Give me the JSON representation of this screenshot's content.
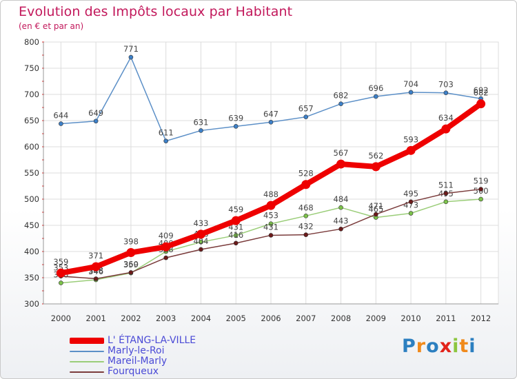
{
  "chart_data": {
    "type": "line",
    "title": "Evolution des Impôts locaux par Habitant",
    "subtitle": "(en € et par an)",
    "xlabel": "",
    "ylabel": "",
    "ylim": [
      300,
      800
    ],
    "y_ticks": [
      300,
      350,
      400,
      450,
      500,
      550,
      600,
      650,
      700,
      750,
      800
    ],
    "x": [
      "2000",
      "2001",
      "2002",
      "2003",
      "2004",
      "2005",
      "2006",
      "2007",
      "2008",
      "2009",
      "2010",
      "2011",
      "2012"
    ],
    "grid": true,
    "legend_position": "bottom-left",
    "series": [
      {
        "name": "Marly-le-Roi",
        "color": "#5b8fc7",
        "marker_color": "#3d80c8",
        "values": [
          644,
          649,
          771,
          611,
          631,
          639,
          647,
          657,
          682,
          696,
          704,
          703,
          692
        ],
        "labels": [
          "644",
          "649",
          "771",
          "611",
          "631",
          "639",
          "647",
          "657",
          "682",
          "696",
          "704",
          "703",
          "692"
        ]
      },
      {
        "name": "Mareil-Marly",
        "color": "#9acd78",
        "marker_color": "#7cc24a",
        "values": [
          340,
          346,
          359,
          400,
          418,
          431,
          453,
          468,
          484,
          465,
          473,
          495,
          500
        ],
        "labels": [
          "340",
          "346",
          "359",
          "400",
          "418",
          "431",
          "453",
          "468",
          "484",
          "465",
          "473",
          "495",
          "500"
        ]
      },
      {
        "name": "Fourqueux",
        "color": "#7a3b3b",
        "marker_color": "#6b1a1a",
        "values": [
          353,
          348,
          360,
          388,
          404,
          416,
          431,
          432,
          443,
          471,
          495,
          511,
          519
        ],
        "labels": [
          "353",
          "348",
          "360",
          "388",
          "404",
          "416",
          "431",
          "432",
          "443",
          "471",
          "495",
          "511",
          "519"
        ]
      },
      {
        "name": "L' ÉTANG-LA-VILLE",
        "color": "#ee0000",
        "marker_color": "#ee0000",
        "values": [
          359,
          371,
          398,
          409,
          433,
          459,
          488,
          528,
          567,
          562,
          593,
          634,
          682
        ],
        "labels": [
          "359",
          "371",
          "398",
          "409",
          "433",
          "459",
          "488",
          "528",
          "567",
          "562",
          "593",
          "634",
          "682"
        ]
      }
    ],
    "legend_order": [
      "L' ÉTANG-LA-VILLE",
      "Marly-le-Roi",
      "Mareil-Marly",
      "Fourqueux"
    ]
  },
  "brand": {
    "text": "Proxiti",
    "letters": [
      "P",
      "r",
      "o",
      "x",
      "i",
      "t",
      "i"
    ],
    "letter_colors": [
      "#2c7fc0",
      "#f08a1c",
      "#2c7fc0",
      "#e2231a",
      "#8dc63f",
      "#f08a1c",
      "#2c7fc0"
    ]
  }
}
